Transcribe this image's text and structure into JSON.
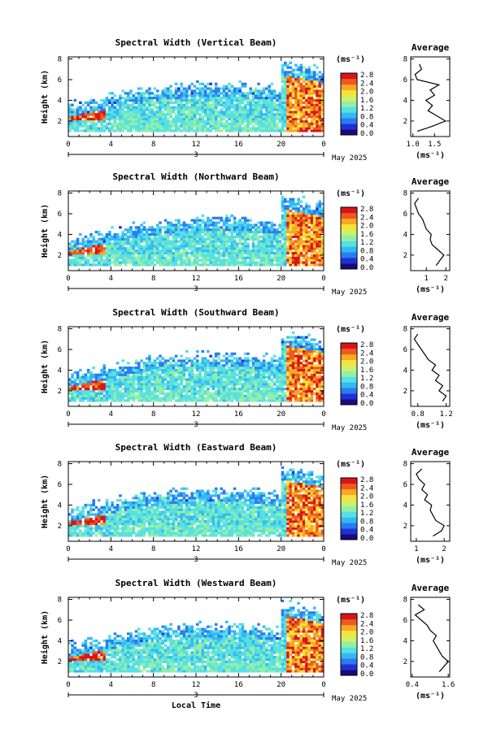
{
  "colors": {
    "scale": [
      "#1a0a7a",
      "#2030d8",
      "#2a7cf0",
      "#34b8f4",
      "#56e0e4",
      "#92f0a6",
      "#cff06a",
      "#f6e23a",
      "#f6a828",
      "#ee5a1c",
      "#d8141a"
    ],
    "axis": "#000000",
    "background": "#ffffff"
  },
  "date_label": "May 2025",
  "bottom_axis_label": "Local Time",
  "colorbar": {
    "unit": "(ms⁻¹)",
    "ticks": [
      "2.8",
      "2.4",
      "2.0",
      "1.6",
      "1.2",
      "0.8",
      "0.4",
      "0.0"
    ]
  },
  "chart_data": [
    {
      "type": "heatmap",
      "title": "Spectral Width (Vertical Beam)",
      "xlabel": "",
      "ylabel": "Height (km)",
      "xlim": [
        0,
        24
      ],
      "ylim": [
        0.5,
        8.2
      ],
      "x_ticks": [
        "0",
        "4",
        "8",
        "12",
        "16",
        "20",
        "0"
      ],
      "x_ticks_values": [
        0,
        4,
        8,
        12,
        16,
        20,
        24
      ],
      "y_ticks": [
        "2",
        "4",
        "6",
        "8"
      ],
      "day_label": "3",
      "colorbar_range": [
        0,
        2.8
      ],
      "average_profile": {
        "title": "Average",
        "xlabel": "(ms⁻¹)",
        "x_ticks": [
          "1.0",
          "1.5"
        ],
        "x_ticks_values": [
          1.0,
          1.5
        ],
        "xlim": [
          0.95,
          1.85
        ],
        "height": [
          1.0,
          1.5,
          2.0,
          2.5,
          3.0,
          3.5,
          4.0,
          4.5,
          5.0,
          5.5,
          6.0,
          6.5,
          7.0,
          7.5
        ],
        "value": [
          1.1,
          1.45,
          1.75,
          1.55,
          1.35,
          1.45,
          1.3,
          1.5,
          1.4,
          1.6,
          1.1,
          1.05,
          1.2,
          1.15
        ]
      }
    },
    {
      "type": "heatmap",
      "title": "Spectral Width (Northward Beam)",
      "xlabel": "",
      "ylabel": "Height (km)",
      "xlim": [
        0,
        24
      ],
      "ylim": [
        0.5,
        8.2
      ],
      "x_ticks": [
        "0",
        "4",
        "8",
        "12",
        "16",
        "20",
        "0"
      ],
      "x_ticks_values": [
        0,
        4,
        8,
        12,
        16,
        20,
        24
      ],
      "y_ticks": [
        "2",
        "4",
        "6",
        "8"
      ],
      "day_label": "3",
      "colorbar_range": [
        0,
        2.8
      ],
      "average_profile": {
        "title": "Average",
        "xlabel": "(ms⁻¹)",
        "x_ticks": [
          "1",
          "2"
        ],
        "x_ticks_values": [
          1,
          2
        ],
        "xlim": [
          0.2,
          2.2
        ],
        "height": [
          1.0,
          1.5,
          2.0,
          2.5,
          3.0,
          3.5,
          4.0,
          4.5,
          5.0,
          5.5,
          6.0,
          6.5,
          7.0,
          7.5
        ],
        "value": [
          1.5,
          1.7,
          1.9,
          1.6,
          1.3,
          1.2,
          1.25,
          1.0,
          0.9,
          0.8,
          0.6,
          0.5,
          0.4,
          0.6
        ]
      }
    },
    {
      "type": "heatmap",
      "title": "Spectral Width (Southward Beam)",
      "xlabel": "",
      "ylabel": "Height (km)",
      "xlim": [
        0,
        24
      ],
      "ylim": [
        0.5,
        8.2
      ],
      "x_ticks": [
        "0",
        "4",
        "8",
        "12",
        "16",
        "20",
        "0"
      ],
      "x_ticks_values": [
        0,
        4,
        8,
        12,
        16,
        20,
        24
      ],
      "y_ticks": [
        "2",
        "4",
        "6",
        "8"
      ],
      "day_label": "3",
      "colorbar_range": [
        0,
        2.8
      ],
      "average_profile": {
        "title": "Average",
        "xlabel": "(ms⁻¹)",
        "x_ticks": [
          "0.8",
          "1.2"
        ],
        "x_ticks_values": [
          0.8,
          1.2
        ],
        "xlim": [
          0.7,
          1.25
        ],
        "height": [
          1.0,
          1.5,
          2.0,
          2.5,
          3.0,
          3.5,
          4.0,
          4.5,
          5.0,
          5.5,
          6.0,
          6.5,
          7.0,
          7.5
        ],
        "value": [
          1.15,
          1.2,
          1.1,
          1.15,
          1.05,
          1.1,
          1.0,
          1.05,
          0.95,
          0.9,
          0.85,
          0.8,
          0.75,
          0.8
        ]
      }
    },
    {
      "type": "heatmap",
      "title": "Spectral Width (Eastward Beam)",
      "xlabel": "",
      "ylabel": "Height (km)",
      "xlim": [
        0,
        24
      ],
      "ylim": [
        0.5,
        8.2
      ],
      "x_ticks": [
        "0",
        "4",
        "8",
        "12",
        "16",
        "20",
        "0"
      ],
      "x_ticks_values": [
        0,
        4,
        8,
        12,
        16,
        20,
        24
      ],
      "y_ticks": [
        "2",
        "4",
        "6",
        "8"
      ],
      "day_label": "3",
      "colorbar_range": [
        0,
        2.8
      ],
      "average_profile": {
        "title": "Average",
        "xlabel": "(ms⁻¹)",
        "x_ticks": [
          "1",
          "2"
        ],
        "x_ticks_values": [
          1,
          2
        ],
        "xlim": [
          0.8,
          2.2
        ],
        "height": [
          1.0,
          1.5,
          2.0,
          2.5,
          3.0,
          3.5,
          4.0,
          4.5,
          5.0,
          5.5,
          6.0,
          6.5,
          7.0,
          7.5
        ],
        "value": [
          1.6,
          1.9,
          2.0,
          1.7,
          1.6,
          1.5,
          1.55,
          1.3,
          1.4,
          1.2,
          1.3,
          1.1,
          1.0,
          1.2
        ]
      }
    },
    {
      "type": "heatmap",
      "title": "Spectral Width (Westward Beam)",
      "xlabel": "Local Time",
      "ylabel": "Height (km)",
      "xlim": [
        0,
        24
      ],
      "ylim": [
        0.5,
        8.2
      ],
      "x_ticks": [
        "0",
        "4",
        "8",
        "12",
        "16",
        "20",
        "0"
      ],
      "x_ticks_values": [
        0,
        4,
        8,
        12,
        16,
        20,
        24
      ],
      "y_ticks": [
        "2",
        "4",
        "6",
        "8"
      ],
      "day_label": "3",
      "colorbar_range": [
        0,
        2.8
      ],
      "average_profile": {
        "title": "Average",
        "xlabel": "(ms⁻¹)",
        "x_ticks": [
          "0.4",
          "1.6"
        ],
        "x_ticks_values": [
          0.4,
          1.6
        ],
        "xlim": [
          0.35,
          1.65
        ],
        "height": [
          1.0,
          1.5,
          2.0,
          2.5,
          3.0,
          3.5,
          4.0,
          4.5,
          5.0,
          5.5,
          6.0,
          6.5,
          7.0,
          7.5
        ],
        "value": [
          1.3,
          1.45,
          1.6,
          1.4,
          1.3,
          1.2,
          1.1,
          1.2,
          1.0,
          0.9,
          0.7,
          0.5,
          0.8,
          0.6
        ]
      }
    }
  ]
}
